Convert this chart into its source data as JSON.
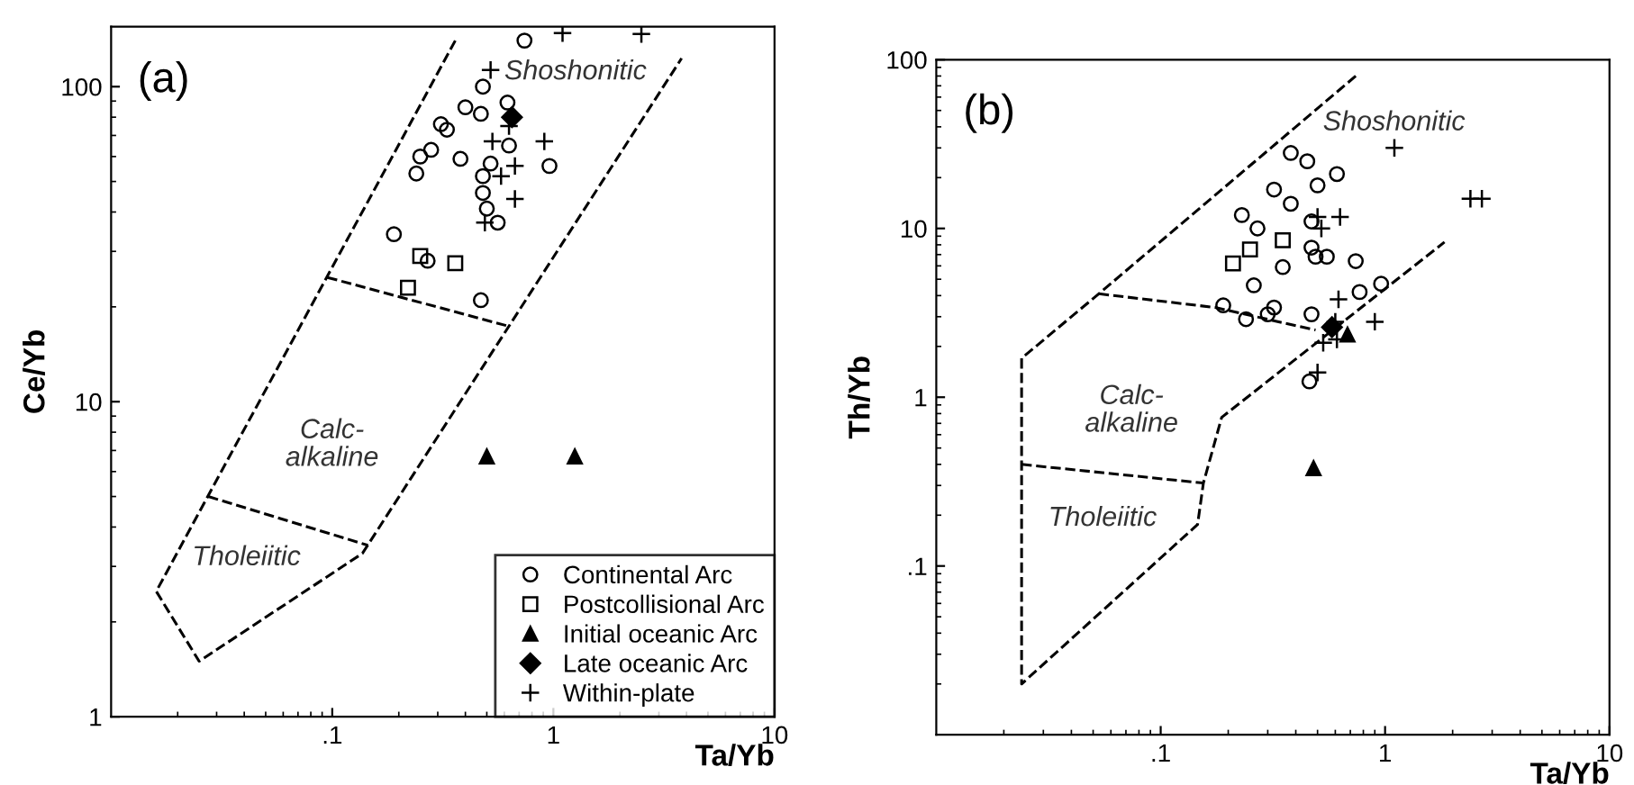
{
  "chart_data": [
    {
      "type": "scatter",
      "title": "(a)",
      "xlabel": "Ta/Yb",
      "ylabel": "Ce/Yb",
      "log": "xy",
      "grid": false,
      "legend": "bottom right",
      "xlim": [
        0.01,
        10
      ],
      "ylim": [
        1,
        155
      ],
      "xticks": [
        {
          "value": 0.1,
          "label": ".1"
        },
        1,
        10
      ],
      "yticks": [
        1,
        10,
        100
      ],
      "annotations": [
        "Shoshonitic",
        "Calc-\nalkaline",
        "Tholeiitic"
      ],
      "series": [
        {
          "name": "Continental Arc",
          "marker": "circle",
          "color": "#000000",
          "x": [
            0.74,
            0.48,
            0.4,
            0.47,
            0.62,
            0.31,
            0.33,
            0.28,
            0.25,
            0.24,
            0.38,
            0.52,
            0.63,
            0.96,
            0.48,
            0.48,
            0.5,
            0.56,
            0.19,
            0.27,
            0.47
          ],
          "values": [
            140,
            100,
            86,
            82,
            89,
            76,
            73,
            63,
            60,
            53,
            59,
            57,
            65,
            56,
            52,
            46,
            41,
            37,
            34,
            28,
            21
          ]
        },
        {
          "name": "Postcollisional Arc",
          "marker": "square",
          "color": "#000000",
          "x": [
            0.25,
            0.36,
            0.22
          ],
          "values": [
            29,
            27.5,
            23
          ]
        },
        {
          "name": "Initial oceanic Arc",
          "marker": "triangle",
          "color": "#000000",
          "x": [
            0.5,
            1.25
          ],
          "values": [
            6.7,
            6.7
          ]
        },
        {
          "name": "Late oceanic Arc",
          "marker": "diamond",
          "color": "#000000",
          "x": [
            0.65
          ],
          "values": [
            80
          ]
        },
        {
          "name": "Within-plate",
          "marker": "cross",
          "color": "#000000",
          "x": [
            1.1,
            2.5,
            0.52,
            0.63,
            0.53,
            0.91,
            0.67,
            0.58,
            0.67,
            0.49
          ],
          "values": [
            148,
            147,
            113,
            75,
            67,
            67,
            56,
            52,
            44,
            37
          ]
        },
        {
          "type": "line",
          "line_style": "dashed",
          "marker": "none",
          "color": "#000000",
          "x": [
            0.36,
            0.016,
            0.025,
            0.137,
            3.8
          ],
          "values": [
            140,
            2.5,
            1.5,
            3.3,
            123
          ]
        },
        {
          "type": "line",
          "line_style": "dashed",
          "marker": "none",
          "color": "#000000",
          "x": [
            0.095,
            0.62
          ],
          "values": [
            24.8,
            17.4
          ]
        },
        {
          "type": "line",
          "line_style": "dashed",
          "marker": "none",
          "color": "#000000",
          "x": [
            0.0275,
            0.145
          ],
          "values": [
            5.0,
            3.5
          ]
        }
      ]
    },
    {
      "type": "scatter",
      "title": "(b)",
      "xlabel": "Ta/Yb",
      "ylabel": "Th/Yb",
      "log": "xy",
      "grid": false,
      "xlim": [
        0.01,
        10
      ],
      "ylim": [
        0.01,
        100
      ],
      "xticks": [
        {
          "value": 0.1,
          "label": ".1"
        },
        1,
        10
      ],
      "yticks": [
        {
          "value": 0.1,
          "label": ".1"
        },
        1,
        10,
        100
      ],
      "annotations": [
        "Shoshonitic",
        "Calc-\nalkaline",
        "Tholeiitic"
      ],
      "series": [
        {
          "marker": "circle",
          "color": "#000000",
          "x": [
            0.38,
            0.45,
            0.61,
            0.5,
            0.32,
            0.38,
            0.23,
            0.27,
            0.47,
            0.47,
            0.49,
            0.55,
            0.74,
            0.35,
            0.26,
            0.77,
            0.96,
            0.19,
            0.24,
            0.3,
            0.32,
            0.47,
            0.46
          ],
          "values": [
            28,
            25,
            21,
            18,
            17,
            14,
            12,
            10,
            11,
            7.7,
            6.8,
            6.8,
            6.4,
            5.9,
            4.6,
            4.2,
            4.7,
            3.5,
            2.9,
            3.1,
            3.4,
            3.1,
            1.24
          ]
        },
        {
          "marker": "square",
          "color": "#000000",
          "x": [
            0.21,
            0.25,
            0.35
          ],
          "values": [
            6.2,
            7.5,
            8.5
          ]
        },
        {
          "marker": "triangle",
          "color": "#000000",
          "x": [
            0.48,
            0.68
          ],
          "values": [
            0.38,
            2.35
          ]
        },
        {
          "marker": "diamond",
          "color": "#000000",
          "x": [
            0.58
          ],
          "values": [
            2.6
          ]
        },
        {
          "marker": "cross",
          "color": "#000000",
          "x": [
            1.1,
            2.4,
            2.7,
            0.5,
            0.63,
            0.52,
            0.62,
            0.9,
            0.53,
            0.61,
            0.5,
            0.6
          ],
          "values": [
            30,
            15,
            15,
            11.7,
            11.7,
            10,
            3.8,
            2.8,
            2.1,
            2.2,
            1.4,
            2.8
          ]
        },
        {
          "type": "line",
          "line_style": "dashed",
          "marker": "none",
          "color": "#000000",
          "x": [
            0.74,
            0.053,
            0.024,
            0.024,
            0.146,
            0.155,
            0.187,
            1.84
          ],
          "values": [
            80,
            4.1,
            1.7,
            0.02,
            0.176,
            0.31,
            0.76,
            8.3
          ]
        },
        {
          "type": "line",
          "line_style": "dashed",
          "marker": "none",
          "color": "#000000",
          "x": [
            0.053,
            0.175,
            0.49
          ],
          "values": [
            4.1,
            3.4,
            2.5
          ]
        },
        {
          "type": "line",
          "line_style": "dashed",
          "marker": "none",
          "color": "#000000",
          "x": [
            0.024,
            0.155
          ],
          "values": [
            0.4,
            0.31
          ]
        }
      ]
    }
  ]
}
